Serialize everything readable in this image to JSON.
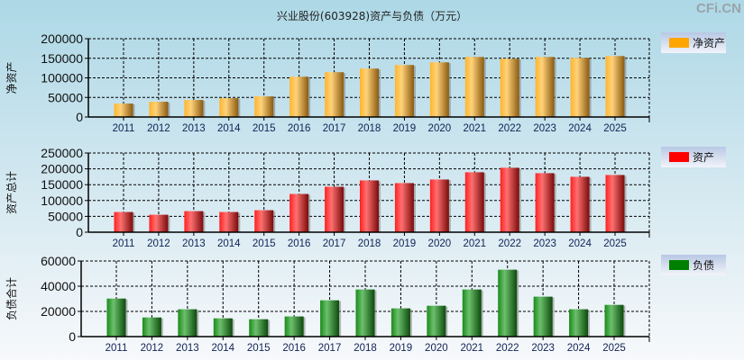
{
  "title": "兴业股份(603928)资产与负债（万元）",
  "brand": "CFi.CN",
  "chart_data": [
    {
      "type": "bar",
      "ylabel": "净资产",
      "legend": "净资产",
      "color": "#ffa500",
      "ylim": [
        0,
        200000
      ],
      "yticks": [
        "0",
        "50000",
        "100000",
        "150000",
        "200000"
      ],
      "categories": [
        "2011",
        "2012",
        "2013",
        "2014",
        "2015",
        "2016",
        "2017",
        "2018",
        "2019",
        "2020",
        "2021",
        "2022",
        "2023",
        "2024",
        "2025"
      ],
      "values": [
        34400,
        39000,
        43500,
        48100,
        52700,
        103000,
        114500,
        123700,
        132800,
        139700,
        153400,
        148900,
        153400,
        151100,
        155700
      ]
    },
    {
      "type": "bar",
      "ylabel": "资产总计",
      "legend": "资产",
      "color": "#ff0000",
      "ylim": [
        0,
        250000
      ],
      "yticks": [
        "0",
        "50000",
        "100000",
        "150000",
        "200000",
        "250000"
      ],
      "categories": [
        "2011",
        "2012",
        "2013",
        "2014",
        "2015",
        "2016",
        "2017",
        "2018",
        "2019",
        "2020",
        "2021",
        "2022",
        "2023",
        "2024",
        "2025"
      ],
      "values": [
        63700,
        55100,
        66500,
        63700,
        69400,
        120700,
        143500,
        163500,
        155000,
        166300,
        189200,
        203400,
        186300,
        174900,
        180600
      ]
    },
    {
      "type": "bar",
      "ylabel": "负债合计",
      "legend": "负债",
      "color": "#008000",
      "ylim": [
        0,
        60000
      ],
      "yticks": [
        "0",
        "20000",
        "40000",
        "60000"
      ],
      "categories": [
        "2011",
        "2012",
        "2013",
        "2014",
        "2015",
        "2016",
        "2017",
        "2018",
        "2019",
        "2020",
        "2021",
        "2022",
        "2023",
        "2024",
        "2025"
      ],
      "values": [
        30200,
        15200,
        21700,
        14500,
        13800,
        16000,
        28800,
        37400,
        22400,
        24500,
        37400,
        53100,
        31700,
        21700,
        25200
      ]
    }
  ]
}
